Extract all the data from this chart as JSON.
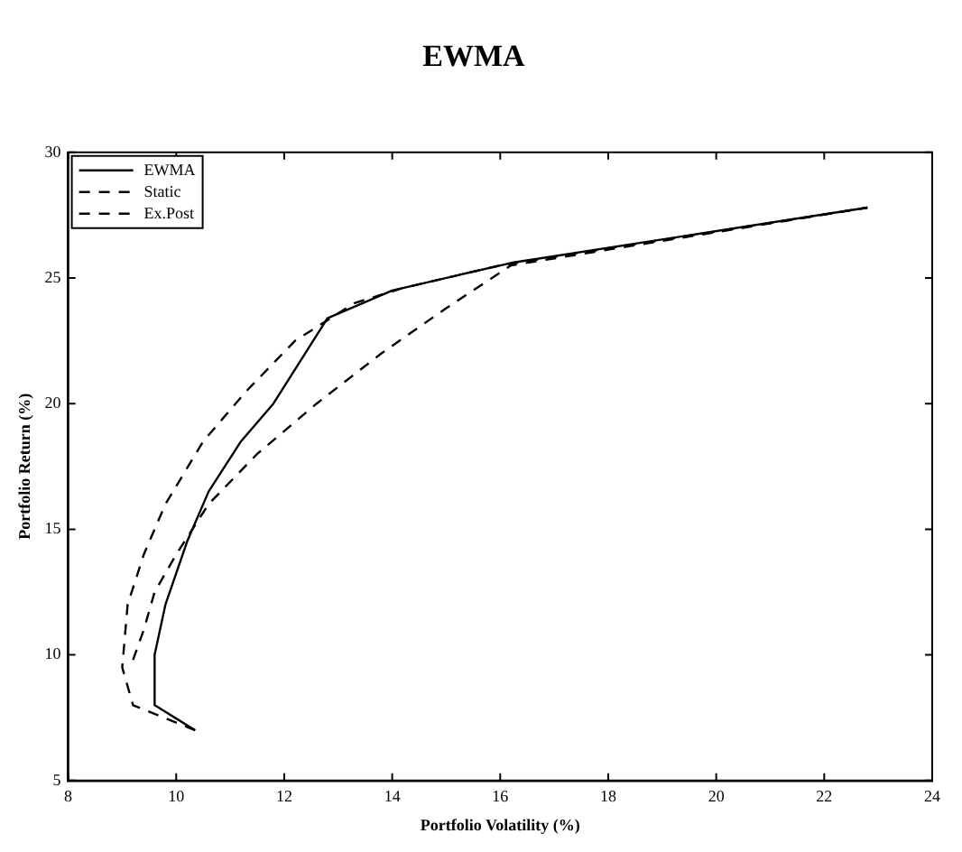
{
  "chart_data": {
    "type": "line",
    "title": "EWMA",
    "xlabel": "Portfolio Volatility (%)",
    "ylabel": "Portfolio Return (%)",
    "xlim": [
      8,
      24
    ],
    "xticks": [
      8,
      10,
      12,
      14,
      16,
      18,
      20,
      22,
      24
    ],
    "ylim": [
      5,
      30
    ],
    "yticks": [
      5,
      10,
      15,
      20,
      25,
      30
    ],
    "grid": false,
    "legend": "top left",
    "marker": "none",
    "series": [
      {
        "name": "EWMA",
        "color": "#000000",
        "line_style": "solid",
        "x": [
          10.35,
          9.6,
          9.6,
          9.8,
          10.2,
          10.6,
          11.2,
          11.8,
          12.8,
          14.0,
          16.2,
          22.8
        ],
        "values": [
          7,
          8,
          10,
          12,
          14.5,
          16.5,
          18.5,
          20,
          23.4,
          24.5,
          25.6,
          27.8
        ]
      },
      {
        "name": "Static",
        "color": "#000000",
        "line_style": "dashed",
        "x": [
          9.2,
          9.4,
          9.6,
          10.0,
          10.6,
          11.5,
          12.6,
          13.8,
          15.0,
          16.2,
          22.8
        ],
        "values": [
          9.8,
          11,
          12.5,
          14,
          16,
          18,
          20,
          22,
          23.8,
          25.5,
          27.8
        ]
      },
      {
        "name": "Ex.Post",
        "color": "#000000",
        "line_style": "dashed",
        "x": [
          10.35,
          9.2,
          9.0,
          9.1,
          9.4,
          9.8,
          10.5,
          11.3,
          12.2,
          13.3,
          14.2,
          16.0,
          22.8
        ],
        "values": [
          7,
          8,
          9.5,
          12,
          14,
          16,
          18.5,
          20.5,
          22.5,
          24,
          24.6,
          25.5,
          27.8
        ]
      }
    ]
  }
}
